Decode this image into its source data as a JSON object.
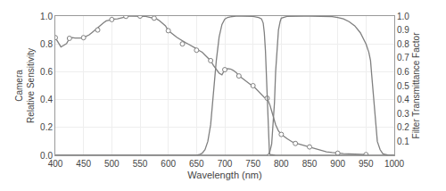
{
  "chart_data": {
    "type": "line",
    "xlabel": "Wavelength (nm)",
    "ylabel": "Camera\nRelative Sensitivity",
    "y2label": "Filter Transmittance Factor",
    "xlim": [
      400,
      1000
    ],
    "ylim": [
      0,
      1
    ],
    "y2lim": [
      0,
      1
    ],
    "xticks": [
      400,
      450,
      500,
      550,
      600,
      650,
      700,
      750,
      800,
      850,
      900,
      950,
      1000
    ],
    "yticks": [
      {
        "value": 0,
        "label": "0.0"
      },
      0.2,
      0.4,
      0.6,
      0.8,
      {
        "value": 1,
        "label": "1.0"
      }
    ],
    "y2ticks": [
      0.1,
      0.2,
      0.3,
      0.4,
      0.5,
      0.6,
      0.7,
      0.8,
      0.9,
      {
        "value": 1,
        "label": "1.0"
      }
    ],
    "grid": true,
    "series": [
      {
        "type": "line",
        "color": "#808080",
        "x": [
          400,
          405,
          410,
          415,
          420,
          425,
          430,
          435,
          440,
          445,
          450,
          455,
          460,
          465,
          470,
          475,
          480,
          485,
          490,
          495,
          500,
          505,
          510,
          515,
          520,
          525,
          530,
          535,
          540,
          545,
          550,
          555,
          560,
          565,
          570,
          575,
          580,
          585,
          590,
          595,
          600,
          605,
          610,
          615,
          620,
          625,
          630,
          635,
          640,
          645,
          650,
          655,
          660,
          665,
          670,
          675,
          680,
          685,
          690,
          695,
          700,
          705,
          710,
          715,
          720,
          725,
          730,
          735,
          740,
          745,
          750,
          755,
          760,
          765,
          770,
          775,
          780,
          785,
          790,
          795,
          800,
          810,
          820,
          830,
          840,
          850,
          860,
          870,
          880,
          890,
          900,
          910,
          920,
          930,
          940,
          950
        ],
        "values": [
          0.845,
          0.812,
          0.778,
          0.79,
          0.802,
          0.84,
          0.845,
          0.842,
          0.84,
          0.842,
          0.845,
          0.855,
          0.865,
          0.882,
          0.9,
          0.917,
          0.935,
          0.95,
          0.965,
          0.97,
          0.975,
          0.978,
          0.98,
          0.985,
          0.99,
          0.996,
          0.999,
          1.0,
          1.0,
          1.0,
          1.0,
          0.999,
          0.997,
          0.993,
          0.988,
          0.985,
          0.978,
          0.965,
          0.95,
          0.93,
          0.895,
          0.878,
          0.86,
          0.848,
          0.835,
          0.82,
          0.81,
          0.8,
          0.79,
          0.78,
          0.765,
          0.752,
          0.74,
          0.72,
          0.7,
          0.68,
          0.645,
          0.615,
          0.59,
          0.578,
          0.615,
          0.622,
          0.62,
          0.61,
          0.595,
          0.572,
          0.555,
          0.54,
          0.525,
          0.51,
          0.5,
          0.48,
          0.46,
          0.438,
          0.415,
          0.41,
          0.36,
          0.29,
          0.22,
          0.175,
          0.15,
          0.12,
          0.095,
          0.082,
          0.07,
          0.06,
          0.045,
          0.035,
          0.025,
          0.02,
          0.015,
          0.012,
          0.01,
          0.008,
          0.006,
          0.005
        ]
      },
      {
        "type": "scatter",
        "color": "#808080",
        "marker": "circle",
        "x": [
          400,
          425,
          450,
          475,
          500,
          525,
          550,
          575,
          600,
          625,
          650,
          675,
          700,
          725,
          750,
          775,
          800,
          825,
          850,
          900,
          950
        ],
        "values": [
          0.845,
          0.84,
          0.845,
          0.9,
          0.975,
          0.998,
          1.0,
          0.985,
          0.895,
          0.8,
          0.755,
          0.68,
          0.615,
          0.57,
          0.5,
          0.41,
          0.15,
          0.085,
          0.06,
          0.015,
          0.005
        ]
      },
      {
        "type": "line",
        "color": "#808080",
        "axis": "y2",
        "x": [
          400,
          630,
          640,
          650,
          655,
          660,
          665,
          670,
          675,
          680,
          685,
          690,
          695,
          700,
          705,
          710,
          715,
          720,
          730,
          740,
          750,
          760,
          765,
          768,
          770,
          772,
          774,
          775,
          776,
          777,
          778,
          779,
          780,
          790,
          1000
        ],
        "values": [
          0.0,
          0.0,
          0.0,
          0.001,
          0.005,
          0.015,
          0.04,
          0.1,
          0.22,
          0.45,
          0.68,
          0.85,
          0.94,
          0.978,
          0.99,
          0.995,
          0.998,
          0.999,
          1.0,
          0.999,
          0.997,
          0.99,
          0.98,
          0.95,
          0.88,
          0.75,
          0.52,
          0.38,
          0.23,
          0.12,
          0.055,
          0.02,
          0.005,
          0.0,
          0.0
        ]
      },
      {
        "type": "line",
        "color": "#808080",
        "axis": "y2",
        "x": [
          400,
          770,
          775,
          778,
          780,
          783,
          785,
          788,
          790,
          793,
          795,
          798,
          800,
          810,
          820,
          830,
          840,
          850,
          860,
          870,
          880,
          890,
          900,
          910,
          920,
          930,
          940,
          950,
          955,
          958,
          960,
          963,
          965,
          968,
          970,
          975,
          980,
          990,
          1000
        ],
        "values": [
          0.0,
          0.0,
          0.003,
          0.01,
          0.03,
          0.08,
          0.18,
          0.38,
          0.6,
          0.78,
          0.9,
          0.96,
          0.985,
          0.997,
          0.999,
          1.0,
          1.0,
          1.0,
          1.0,
          0.999,
          0.998,
          0.996,
          0.99,
          0.98,
          0.96,
          0.93,
          0.88,
          0.8,
          0.74,
          0.68,
          0.58,
          0.43,
          0.31,
          0.18,
          0.1,
          0.04,
          0.01,
          0.001,
          0.0
        ]
      }
    ]
  }
}
